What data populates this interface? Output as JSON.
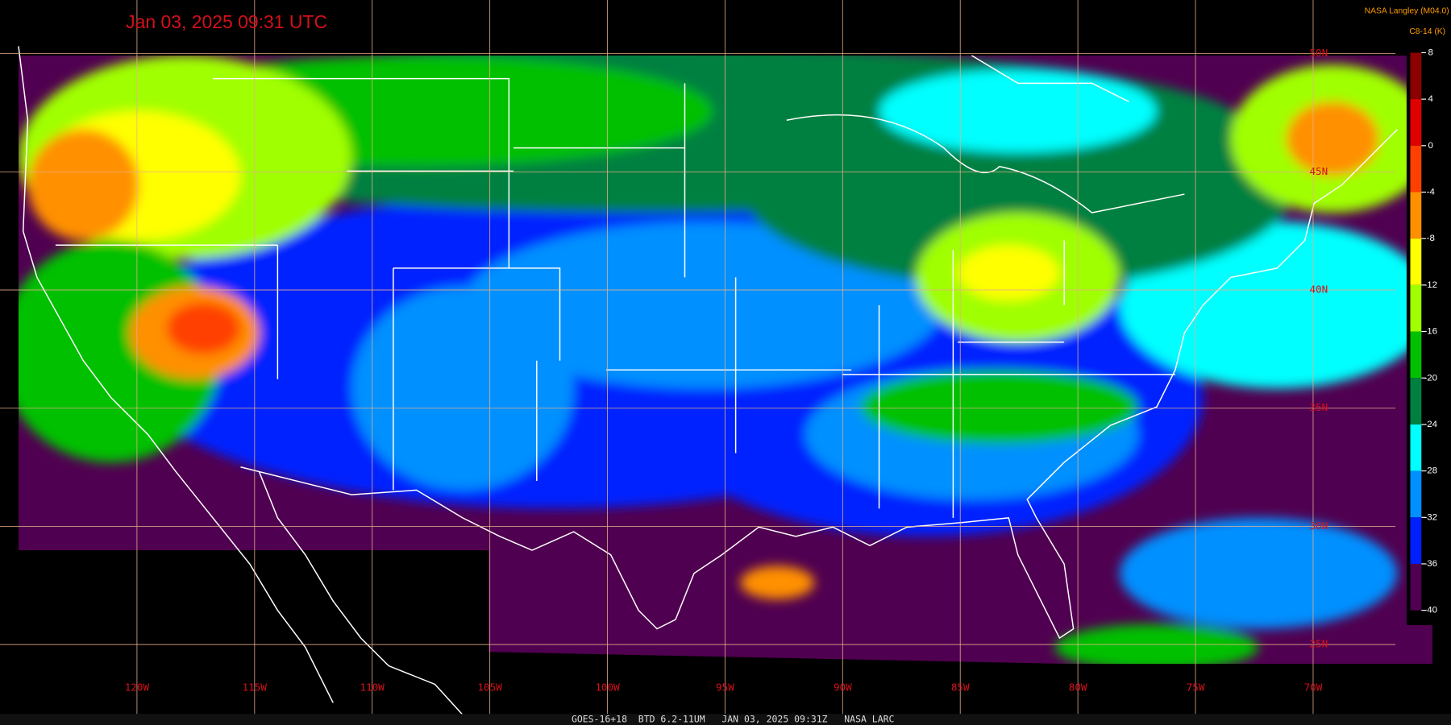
{
  "header": {
    "title": "Jan 03, 2025 09:31 UTC",
    "credit": "NASA Langley (M04.0)",
    "units": "C8-14 (K)"
  },
  "colorbar": {
    "ylim": [
      -40,
      8
    ],
    "ticks": [
      8,
      4,
      0,
      -4,
      -8,
      -12,
      -16,
      -20,
      -24,
      -28,
      -32,
      -36,
      -40
    ],
    "colors": [
      "#8b0000",
      "#e00000",
      "#ff4000",
      "#ff9000",
      "#ffff00",
      "#a0ff00",
      "#00c000",
      "#008040",
      "#00ffff",
      "#0090ff",
      "#0020ff",
      "#500050"
    ]
  },
  "map": {
    "lon_labels": [
      "120W",
      "115W",
      "110W",
      "105W",
      "100W",
      "95W",
      "90W",
      "85W",
      "80W",
      "75W",
      "70W"
    ],
    "lat_labels": [
      "50N",
      "45N",
      "40N",
      "35N",
      "30N",
      "25N"
    ]
  },
  "footer": "GOES-16+18  BTD 6.2-11UM   JAN 03, 2025 09:31Z   NASA LARC"
}
